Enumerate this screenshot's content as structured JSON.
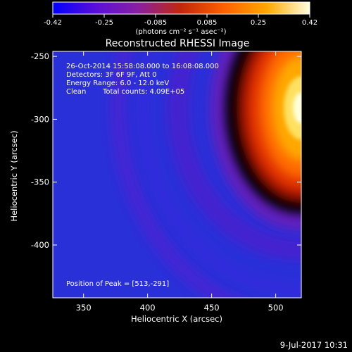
{
  "chart_data": {
    "type": "heatmap",
    "title": "Reconstructed RHESSI Image",
    "xlabel": "Heliocentric X (arcsec)",
    "ylabel": "Heliocentric Y (arcsec)",
    "xlim": [
      326,
      520
    ],
    "ylim": [
      -442,
      -246
    ],
    "xticks": [
      350,
      400,
      450,
      500
    ],
    "yticks": [
      -250,
      -300,
      -350,
      -400
    ],
    "colorbar": {
      "label": "(photons cm⁻² s⁻¹ asec⁻²)",
      "range": [
        -0.42,
        0.42
      ],
      "ticks": [
        "-0.42",
        "-0.25",
        "-0.085",
        "0.085",
        "0.25",
        "0.42"
      ],
      "colormap": [
        "#0000ff",
        "#5a0fd8",
        "#8a1fa0",
        "#c0280a",
        "#ff6000",
        "#ffa800",
        "#ffffe0"
      ]
    },
    "annotations": {
      "time_range": "26-Oct-2014 15:58:08.000 to 16:08:08.000",
      "detectors": "Detectors: 3F 6F 9F, Att 0",
      "energy_range": "Energy Range: 6.0 - 12.0 keV",
      "algorithm": "Clean",
      "total_counts": "Total counts: 4.09E+05",
      "peak": "Position of Peak = [513,-291]"
    },
    "peak_position": [
      513,
      -291
    ],
    "source_center": [
      520,
      -291
    ]
  },
  "footer": {
    "date": "9-Jul-2017 10:31"
  }
}
